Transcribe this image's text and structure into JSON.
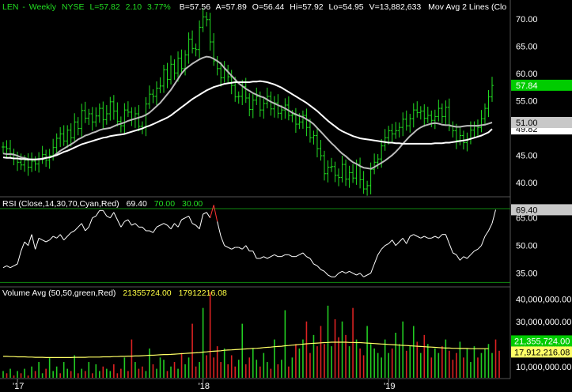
{
  "header": {
    "symbol": "LEN",
    "period": "Weekly",
    "exchange": "NYSE",
    "last": "L=57.82",
    "change": "2.10",
    "change_pct": "3.77%",
    "bid": "B=57.56",
    "ask": "A=57.89",
    "open": "O=56.44",
    "high": "Hi=57.92",
    "low": "Lo=54.95",
    "volume": "V=13,882,633",
    "study": "Mov Avg 2 Lines (Clo"
  },
  "price_panel": {
    "y_ticks": [
      "70.00",
      "65.00",
      "60.00",
      "55.00",
      "50.00",
      "45.00",
      "40.00"
    ],
    "y_tick_values": [
      70,
      65,
      60,
      55,
      50,
      45,
      40
    ],
    "ylim": [
      37.5,
      73.5
    ],
    "last_label": "57.84",
    "last_value": 57.84,
    "ma_label_1": "51.00",
    "ma_value_1": 51.0,
    "ma_label_2": "49.82",
    "ma_value_2": 49.82,
    "colors": {
      "bars": "#22dd22",
      "ma_fast": "#bbbbbb",
      "ma_slow": "#ffffff",
      "last_box": "#00cc00"
    }
  },
  "rsi_panel": {
    "title": "RSI (Close,14,30,70,Cyan,Red)",
    "value": "69.40",
    "upper": "70.00",
    "lower": "30.00",
    "y_ticks": [
      "65.00",
      "50.00",
      "35.00"
    ],
    "y_tick_values": [
      65,
      50,
      35
    ],
    "ylim": [
      28,
      76
    ],
    "last_label": "69.40",
    "last_value": 69.4
  },
  "volume_panel": {
    "title": "Volume Avg (50,50,green,Red)",
    "avg_value": "21355724.00",
    "avg_value2": "17912216.08",
    "y_ticks": [
      "40,000,000.00",
      "30,000,000.00",
      "20,000,000.00",
      "10,000,000.00"
    ],
    "y_tick_values": [
      40000000,
      30000000,
      20000000,
      10000000
    ],
    "ylim": [
      5000000,
      45000000
    ],
    "last_label": "21,355,724.00",
    "last_label2": "17,912,216.08",
    "last_value": 21355724,
    "last_value2": 17912216
  },
  "x_axis": {
    "labels": [
      "'17",
      "'18",
      "'19"
    ],
    "label_weeks": [
      4,
      56,
      108
    ]
  },
  "chart_data": {
    "type": "line",
    "closes": [
      46.5,
      46.2,
      45.3,
      44.4,
      43.7,
      43.2,
      44.1,
      42.8,
      43.9,
      43.4,
      44.3,
      45.1,
      44.1,
      44.9,
      46.4,
      48.1,
      48.9,
      47.6,
      49.6,
      48.2,
      51.1,
      49.9,
      53.2,
      51.8,
      52.6,
      51.1,
      52.2,
      53.6,
      51.5,
      52.6,
      54.8,
      53.1,
      51.2,
      50.4,
      53.3,
      52.9,
      51.6,
      52.6,
      50.3,
      50.1,
      54.4,
      56.2,
      55.8,
      57.3,
      57.7,
      60.7,
      58.9,
      61.7,
      60.1,
      62.8,
      60.9,
      63.4,
      66.3,
      64.6,
      64.4,
      68.5,
      70.4,
      69.9,
      65.8,
      62.3,
      60.9,
      59.2,
      60.7,
      59.4,
      57.8,
      55.7,
      55.8,
      57.6,
      55.5,
      53.4,
      55.1,
      55.8,
      53.3,
      54.5,
      55.8,
      53.5,
      54.6,
      52.7,
      53.3,
      54.2,
      52.3,
      52.4,
      50.7,
      51.1,
      52.3,
      50.1,
      48.2,
      48.6,
      46.2,
      44.9,
      41.6,
      42.8,
      42.9,
      41.3,
      40.9,
      43.3,
      40.6,
      41.8,
      40.8,
      43.3,
      40.5,
      38.8,
      39.4,
      42.4,
      43.7,
      44.3,
      46.7,
      48.2,
      49.5,
      48.9,
      49.5,
      50.1,
      51.6,
      50.4,
      51.7,
      53.3,
      52.8,
      53.1,
      51.8,
      52.3,
      51.4,
      52.1,
      53.6,
      52.1,
      53.8,
      50.3,
      49.5,
      47.7,
      48.6,
      47.3,
      47.9,
      49.6,
      50.3,
      50.1,
      51.7,
      53.6,
      55.7,
      57.8
    ],
    "ma_fast": [
      45.3,
      45.2,
      45.2,
      45.1,
      44.9,
      44.6,
      44.5,
      44.3,
      44.2,
      44.2,
      44.2,
      44.4,
      44.5,
      44.6,
      44.8,
      45.3,
      45.8,
      46.2,
      46.6,
      47.0,
      47.4,
      47.9,
      48.2,
      48.6,
      48.8,
      49.1,
      49.3,
      49.6,
      49.8,
      49.9,
      50.0,
      50.3,
      50.6,
      50.8,
      51.0,
      51.3,
      51.5,
      51.7,
      51.9,
      52.1,
      52.4,
      52.8,
      53.4,
      54.0,
      54.6,
      55.4,
      56.2,
      57.0,
      58.0,
      59.0,
      60.0,
      60.8,
      61.3,
      61.8,
      62.2,
      62.6,
      62.9,
      63.1,
      63.0,
      62.7,
      62.3,
      61.8,
      61.0,
      60.3,
      59.6,
      58.9,
      58.2,
      57.7,
      57.2,
      56.8,
      56.4,
      56.1,
      55.8,
      55.6,
      55.2,
      54.8,
      54.5,
      54.2,
      53.9,
      53.6,
      53.2,
      52.8,
      52.5,
      52.2,
      52.0,
      51.6,
      51.2,
      50.7,
      50.0,
      49.3,
      48.6,
      47.9,
      47.2,
      46.6,
      45.9,
      45.3,
      44.8,
      44.2,
      43.7,
      43.4,
      43.0,
      42.7,
      42.6,
      42.5,
      42.8,
      43.2,
      43.6,
      44.0,
      44.5,
      45.0,
      45.6,
      46.3,
      47.1,
      47.8,
      48.5,
      49.1,
      49.7,
      50.1,
      50.4,
      50.6,
      50.8,
      50.9,
      50.8,
      50.6,
      50.5,
      50.5,
      50.3,
      50.2,
      50.2,
      50.3,
      50.4,
      50.4,
      50.4,
      50.4,
      50.5,
      50.6,
      50.8,
      51.0
    ],
    "ma_slow": [
      44.6,
      44.5,
      44.5,
      44.4,
      44.4,
      44.3,
      44.3,
      44.2,
      44.2,
      44.2,
      44.3,
      44.3,
      44.5,
      44.6,
      44.8,
      45.0,
      45.3,
      45.6,
      45.8,
      46.1,
      46.4,
      46.7,
      47.0,
      47.2,
      47.4,
      47.6,
      47.8,
      48.0,
      48.2,
      48.3,
      48.5,
      48.6,
      48.7,
      48.8,
      48.9,
      49.1,
      49.3,
      49.5,
      49.7,
      49.9,
      50.2,
      50.4,
      50.7,
      51.0,
      51.3,
      51.6,
      51.9,
      52.3,
      52.8,
      53.3,
      53.8,
      54.3,
      54.8,
      55.3,
      55.7,
      56.1,
      56.5,
      56.9,
      57.2,
      57.5,
      57.7,
      57.9,
      58.1,
      58.2,
      58.3,
      58.4,
      58.4,
      58.4,
      58.4,
      58.4,
      58.5,
      58.5,
      58.6,
      58.5,
      58.4,
      58.2,
      58.0,
      57.7,
      57.4,
      57.0,
      56.6,
      56.2,
      55.8,
      55.4,
      55.0,
      54.6,
      54.1,
      53.6,
      53.1,
      52.5,
      51.9,
      51.3,
      50.8,
      50.3,
      49.8,
      49.4,
      49.1,
      48.8,
      48.5,
      48.3,
      48.1,
      48.0,
      47.9,
      47.8,
      47.7,
      47.6,
      47.5,
      47.4,
      47.3,
      47.3,
      47.2,
      47.2,
      47.1,
      47.1,
      47.1,
      47.1,
      47.1,
      47.1,
      47.1,
      47.1,
      47.1,
      47.2,
      47.2,
      47.2,
      47.3,
      47.3,
      47.4,
      47.5,
      47.6,
      47.7,
      47.8,
      48.0,
      48.2,
      48.4,
      48.6,
      48.9,
      49.2,
      49.8
    ],
    "rsi": [
      38,
      39,
      38,
      39,
      40,
      47,
      52,
      50,
      56,
      48,
      54,
      53,
      52,
      53,
      55,
      54,
      56,
      53,
      55,
      57,
      58,
      60,
      62,
      58,
      60,
      65,
      66,
      69,
      69,
      66,
      65,
      68,
      64,
      60,
      63,
      64,
      61,
      62,
      60,
      60,
      58,
      58,
      57,
      60,
      61,
      62,
      61,
      59,
      62,
      60,
      64,
      65,
      66,
      62,
      61,
      59,
      67,
      68,
      65,
      72,
      63,
      55,
      50,
      49,
      48,
      49,
      49,
      48,
      50,
      47,
      47,
      43,
      43,
      44,
      43,
      44,
      45,
      44,
      44,
      45,
      45,
      44,
      44,
      45,
      46,
      44,
      43,
      40,
      39,
      37,
      36,
      34,
      33,
      33,
      35,
      36,
      35,
      36,
      35,
      34,
      35,
      33,
      34,
      35,
      40,
      45,
      48,
      50,
      51,
      53,
      50,
      52,
      54,
      51,
      55,
      56,
      55,
      54,
      55,
      54,
      54,
      55,
      54,
      56,
      56,
      51,
      46,
      45,
      42,
      44,
      43,
      45,
      47,
      48,
      50,
      55,
      58,
      62,
      69.4
    ],
    "volume": [
      8,
      7,
      9,
      6,
      8,
      7,
      9,
      6,
      10,
      8,
      12,
      7,
      9,
      14,
      8,
      10,
      7,
      12,
      9,
      8,
      15,
      7,
      9,
      8,
      12,
      7,
      11,
      8,
      10,
      9,
      8,
      11,
      7,
      9,
      14,
      8,
      22,
      12,
      9,
      10,
      8,
      18,
      11,
      9,
      14,
      13,
      8,
      10,
      12,
      9,
      16,
      11,
      14,
      29,
      10,
      12,
      36,
      15,
      43,
      14,
      19,
      12,
      18,
      11,
      15,
      10,
      13,
      29,
      11,
      14,
      18,
      13,
      10,
      16,
      12,
      9,
      22,
      11,
      13,
      35,
      10,
      14,
      20,
      18,
      22,
      30,
      16,
      24,
      19,
      28,
      20,
      37,
      19,
      31,
      23,
      30,
      24,
      19,
      36,
      22,
      18,
      15,
      28,
      20,
      18,
      16,
      14,
      22,
      16,
      18,
      25,
      20,
      30,
      17,
      19,
      28,
      21,
      16,
      24,
      20,
      14,
      18,
      16,
      19,
      22,
      17,
      13,
      16,
      21,
      14,
      18,
      12,
      19,
      14,
      16,
      18,
      20,
      16,
      22,
      17
    ],
    "volume_avg": [
      14.5,
      14.5,
      14.4,
      14.4,
      14.3,
      14.3,
      14.3,
      14.2,
      14.2,
      14.1,
      14.1,
      14.1,
      14.0,
      14.0,
      14.0,
      14.0,
      14.0,
      14.0,
      14.0,
      14.0,
      14.1,
      14.1,
      14.1,
      14.1,
      14.2,
      14.2,
      14.2,
      14.2,
      14.3,
      14.3,
      14.3,
      14.4,
      14.4,
      14.5,
      14.5,
      14.6,
      14.6,
      14.7,
      14.7,
      14.8,
      14.9,
      15.0,
      15.0,
      15.1,
      15.2,
      15.3,
      15.3,
      15.4,
      15.5,
      15.6,
      15.7,
      15.8,
      15.9,
      16.0,
      16.1,
      16.2,
      16.4,
      16.5,
      16.7,
      16.8,
      16.9,
      17.0,
      17.2,
      17.3,
      17.4,
      17.5,
      17.6,
      17.7,
      17.8,
      17.9,
      18.0,
      18.1,
      18.2,
      18.4,
      18.5,
      18.6,
      18.8,
      18.9,
      19.0,
      19.2,
      19.3,
      19.5,
      19.6,
      19.8,
      19.9,
      20.1,
      20.2,
      20.3,
      20.4,
      20.5,
      20.6,
      20.7,
      20.8,
      20.8,
      20.8,
      20.8,
      20.8,
      20.7,
      20.7,
      20.6,
      20.6,
      20.5,
      20.4,
      20.3,
      20.2,
      20.1,
      20.0,
      19.9,
      19.8,
      19.7,
      19.6,
      19.5,
      19.4,
      19.3,
      19.2,
      19.1,
      19.0,
      18.9,
      18.8,
      18.7,
      18.6,
      18.5,
      18.4,
      18.3,
      18.2,
      18.2,
      18.1,
      18.1,
      18.0,
      18.0,
      18.0,
      17.9,
      17.9,
      17.9,
      17.9,
      17.9,
      17.9
    ],
    "volume_unit": "millions",
    "volume_up": [
      1,
      0,
      1,
      0,
      1,
      0,
      1,
      0,
      1,
      0,
      1,
      1,
      0,
      1,
      1,
      1,
      0,
      1,
      1,
      0,
      1,
      0,
      1,
      0,
      1,
      0,
      1,
      1,
      0,
      1,
      1,
      0,
      0,
      0,
      1,
      0,
      0,
      1,
      0,
      0,
      1,
      1,
      0,
      1,
      1,
      1,
      0,
      1,
      0,
      1,
      0,
      1,
      1,
      0,
      0,
      1,
      1,
      0,
      0,
      0,
      0,
      0,
      1,
      0,
      0,
      0,
      1,
      1,
      0,
      0,
      1,
      1,
      0,
      1,
      1,
      0,
      1,
      0,
      1,
      1,
      0,
      1,
      0,
      1,
      1,
      0,
      0,
      1,
      0,
      0,
      0,
      1,
      1,
      0,
      0,
      1,
      0,
      1,
      0,
      1,
      0,
      0,
      1,
      1,
      1,
      1,
      1,
      1,
      1,
      0,
      1,
      1,
      1,
      0,
      1,
      1,
      0,
      1,
      0,
      1,
      0,
      1,
      1,
      0,
      1,
      0,
      0,
      0,
      1,
      0,
      1,
      1,
      1,
      0,
      1,
      1,
      1,
      1
    ]
  }
}
